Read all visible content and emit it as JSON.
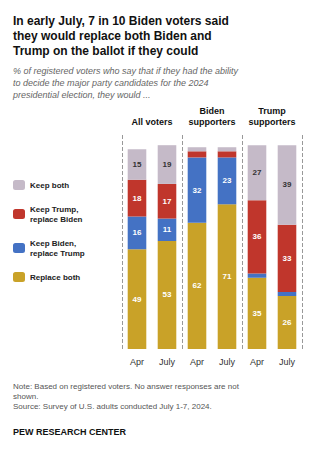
{
  "chart_data": {
    "type": "bar",
    "stacked": true,
    "title": "In early July, 7 in 10 Biden voters said\nthey would replace both Biden and\nTrump on the ballot if they could",
    "subtitle": "% of registered voters who say that if they had the ability\nto decide the major party candidates for the 2024\npresidential election, they would ...",
    "note": "Note: Based on registered voters. No answer responses are not\nshown.\nSource: Survey of U.S. adults conducted July 1-7, 2024.",
    "brand": "PEW RESEARCH CENTER",
    "group_labels": [
      "All voters",
      "Biden\nsupporters",
      "Trump\nsupporters"
    ],
    "categories": [
      "Apr",
      "July",
      "Apr",
      "July",
      "Apr",
      "July"
    ],
    "series": [
      {
        "name": "Replace both",
        "color": "#C9A228",
        "values": [
          49,
          53,
          62,
          71,
          35,
          26
        ]
      },
      {
        "name": "Keep Biden,\nreplace Trump",
        "color": "#4472C4",
        "values": [
          16,
          11,
          32,
          23,
          2,
          2
        ],
        "value_labels": [
          "16",
          "11",
          "32",
          "23",
          null,
          null
        ]
      },
      {
        "name": "Keep Trump,\nreplace Biden",
        "color": "#C0362C",
        "values": [
          18,
          17,
          3,
          3,
          36,
          33
        ],
        "value_labels": [
          "18",
          "17",
          null,
          null,
          "36",
          "33"
        ]
      },
      {
        "name": "Keep both",
        "color": "#C5BAC8",
        "values": [
          15,
          19,
          2,
          2,
          27,
          39
        ],
        "value_labels": [
          "15",
          "19",
          null,
          null,
          "27",
          "39"
        ]
      }
    ],
    "ylim": [
      0,
      105
    ],
    "data_labels": true,
    "tick_labels": "x",
    "legend": "left"
  }
}
